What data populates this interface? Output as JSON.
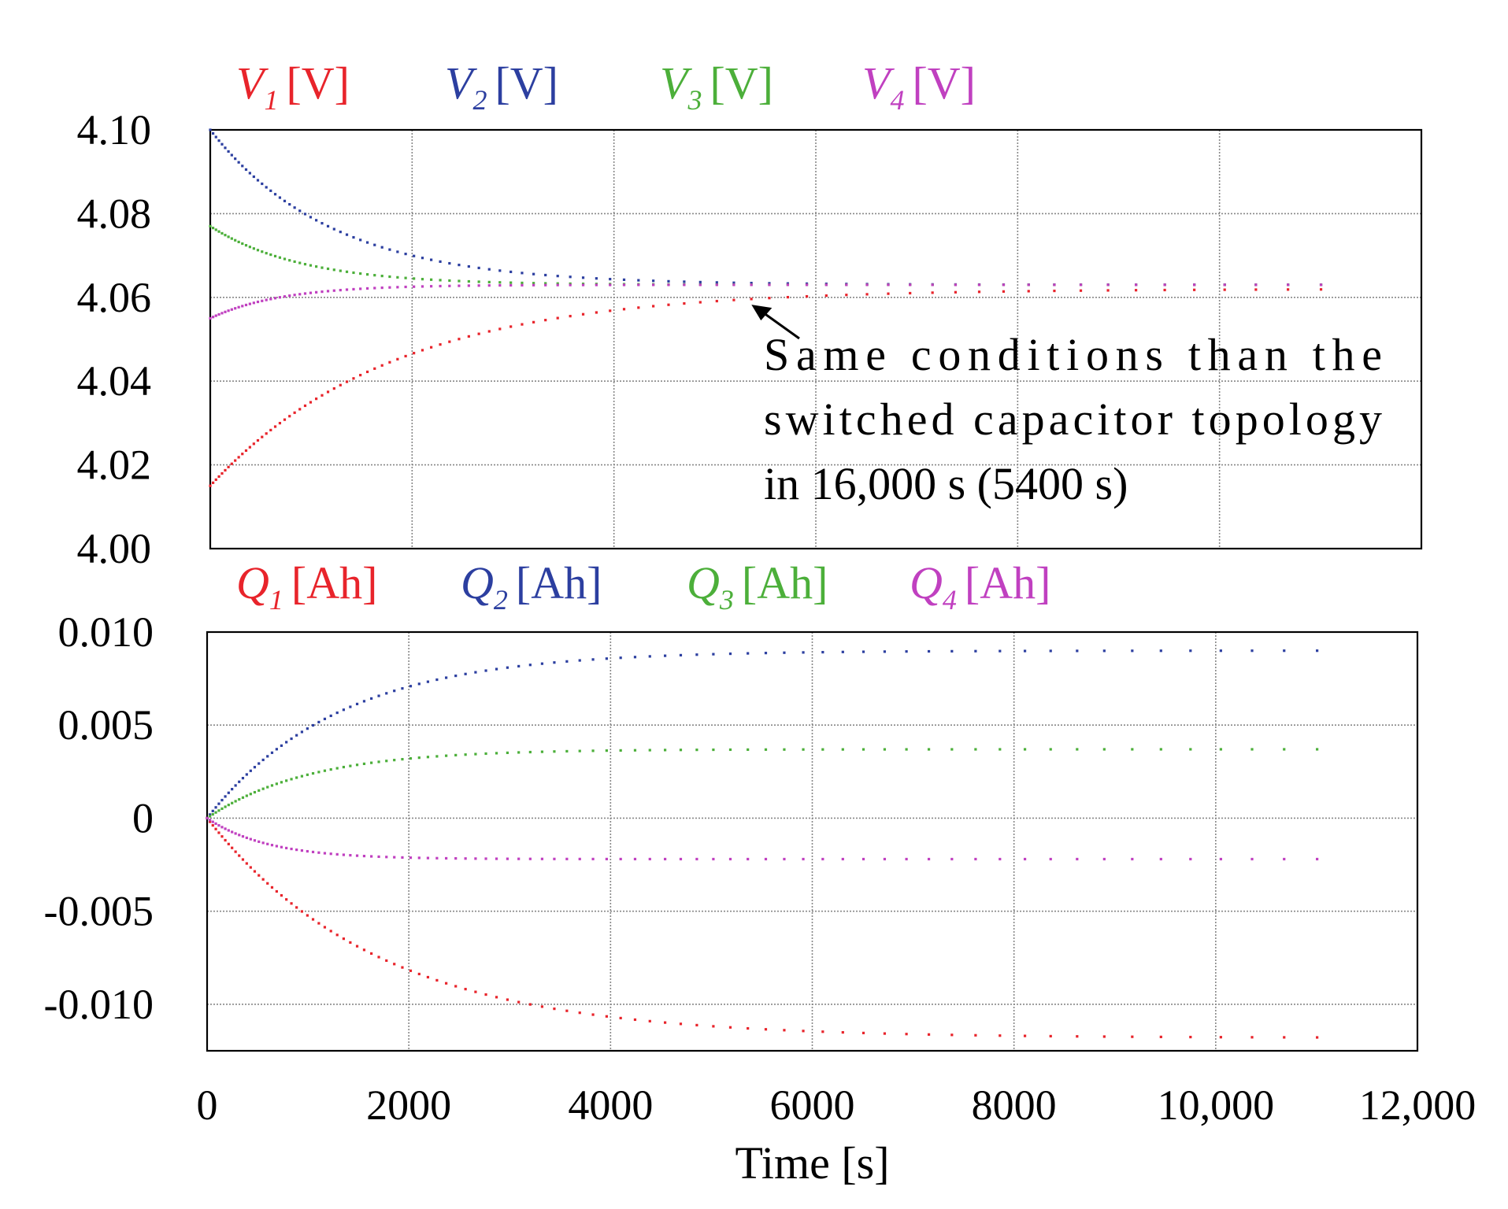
{
  "colors": {
    "V1": "#e8242b",
    "V2": "#2c3fa0",
    "V3": "#4caf3a",
    "V4": "#c040c0",
    "axis": "#000000",
    "grid": "#888888"
  },
  "chart_data": [
    {
      "type": "scatter",
      "id": "voltage",
      "xlim": [
        0,
        12000
      ],
      "ylim": [
        4.0,
        4.1
      ],
      "yticks": [
        4.0,
        4.02,
        4.04,
        4.06,
        4.08,
        4.1
      ],
      "ytick_labels": [
        "4.00",
        "4.02",
        "4.04",
        "4.06",
        "4.08",
        "4.10"
      ],
      "xgrid": [
        2000,
        4000,
        6000,
        8000,
        10000
      ],
      "legend": [
        {
          "sym": "V",
          "sub": "1",
          "unit": "[V]",
          "color_key": "V1"
        },
        {
          "sym": "V",
          "sub": "2",
          "unit": "[V]",
          "color_key": "V2"
        },
        {
          "sym": "V",
          "sub": "3",
          "unit": "[V]",
          "color_key": "V3"
        },
        {
          "sym": "V",
          "sub": "4",
          "unit": "[V]",
          "color_key": "V4"
        }
      ],
      "series": [
        {
          "name": "V1",
          "color_key": "V1",
          "equation": {
            "kind": "exp",
            "start": 4.015,
            "final": 4.062,
            "tau": 1800
          }
        },
        {
          "name": "V2",
          "color_key": "V2",
          "equation": {
            "kind": "exp",
            "start": 4.1,
            "final": 4.063,
            "tau": 1200
          }
        },
        {
          "name": "V3",
          "color_key": "V3",
          "equation": {
            "kind": "exp",
            "start": 4.077,
            "final": 4.063,
            "tau": 900
          }
        },
        {
          "name": "V4",
          "color_key": "V4",
          "equation": {
            "kind": "exp",
            "start": 4.055,
            "final": 4.063,
            "tau": 700
          }
        }
      ],
      "annotation": {
        "lines": [
          "Same conditions than the",
          "switched capacitor topology",
          "in 16,000 s (5400 s)"
        ],
        "arrow_target": [
          5300,
          4.059
        ]
      }
    },
    {
      "type": "scatter",
      "id": "charge",
      "xlim": [
        0,
        12000
      ],
      "ylim": [
        -0.0125,
        0.01
      ],
      "yticks": [
        -0.01,
        -0.005,
        0,
        0.005,
        0.01
      ],
      "ytick_labels": [
        "-0.010",
        "-0.005",
        "0",
        "0.005",
        "0.010"
      ],
      "xticks": [
        0,
        2000,
        4000,
        6000,
        8000,
        10000,
        12000
      ],
      "xtick_labels": [
        "0",
        "2000",
        "4000",
        "6000",
        "8000",
        "10,000",
        "12,000"
      ],
      "xgrid": [
        2000,
        4000,
        6000,
        8000,
        10000
      ],
      "xlabel": "Time [s]",
      "legend": [
        {
          "sym": "Q",
          "sub": "1",
          "unit": "[Ah]",
          "color_key": "V1"
        },
        {
          "sym": "Q",
          "sub": "2",
          "unit": "[Ah]",
          "color_key": "V2"
        },
        {
          "sym": "Q",
          "sub": "3",
          "unit": "[Ah]",
          "color_key": "V3"
        },
        {
          "sym": "Q",
          "sub": "4",
          "unit": "[Ah]",
          "color_key": "V4"
        }
      ],
      "series": [
        {
          "name": "Q1",
          "color_key": "V1",
          "equation": {
            "kind": "exp",
            "start": 0,
            "final": -0.0118,
            "tau": 1700
          }
        },
        {
          "name": "Q2",
          "color_key": "V2",
          "equation": {
            "kind": "exp",
            "start": 0,
            "final": 0.009,
            "tau": 1300
          }
        },
        {
          "name": "Q3",
          "color_key": "V3",
          "equation": {
            "kind": "exp",
            "start": 0,
            "final": 0.0037,
            "tau": 1000
          }
        },
        {
          "name": "Q4",
          "color_key": "V4",
          "equation": {
            "kind": "exp",
            "start": 0,
            "final": -0.0022,
            "tau": 600
          }
        }
      ]
    }
  ]
}
